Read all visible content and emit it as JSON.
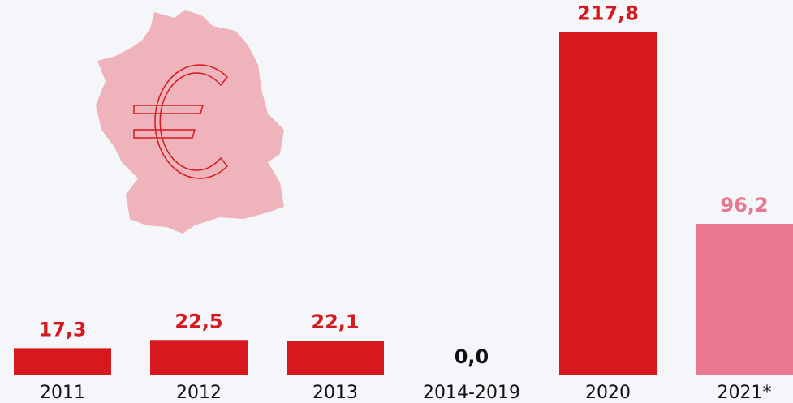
{
  "chart_data": {
    "type": "bar",
    "categories": [
      "2011",
      "2012",
      "2013",
      "2014-2019",
      "2020",
      "2021*"
    ],
    "values": [
      17.3,
      22.5,
      22.1,
      0.0,
      217.8,
      96.2
    ],
    "value_labels": [
      "17,3",
      "22,5",
      "22,1",
      "0,0",
      "217,8",
      "96,2"
    ],
    "colors": [
      "#d7191f",
      "#d7191f",
      "#d7191f",
      "#d7191f",
      "#d7191f",
      "#e8778f"
    ],
    "label_colors": [
      "#d7191f",
      "#d7191f",
      "#d7191f",
      "#111111",
      "#d7191f",
      "#e8778f"
    ],
    "ylim": [
      0,
      230
    ]
  }
}
